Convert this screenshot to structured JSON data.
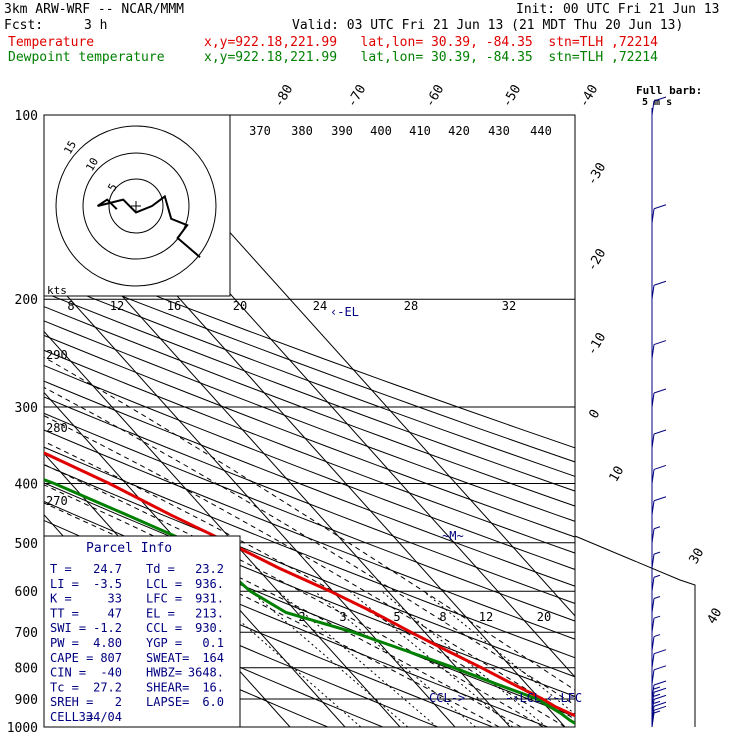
{
  "header": {
    "model": "3km ARW-WRF -- NCAR/MMM",
    "init": "Init: 00 UTC Fri 21 Jun 13",
    "fcst_label": "Fcst:",
    "fcst_value": "3 h",
    "valid": "Valid: 03 UTC Fri 21 Jun 13 (21 MDT Thu 20 Jun 13)",
    "temp_label": "Temperature",
    "temp_loc": "x,y=922.18,221.99   lat,lon= 30.39, -84.35  stn=TLH ,72214",
    "dew_label": "Dewpoint temperature",
    "dew_loc": "x,y=922.18,221.99   lat,lon= 30.39, -84.35  stn=TLH ,72214"
  },
  "barb_title": "Full barb:",
  "barb_units": "5 m s",
  "hodograph": {
    "units": "kts",
    "ring_labels": [
      "5",
      "10",
      "15"
    ]
  },
  "parcel_info": {
    "title": "Parcel Info",
    "rows": [
      [
        "T  =",
        "24.7",
        "Td =",
        "23.2"
      ],
      [
        "LI =",
        "-3.5",
        "LCL =",
        "936."
      ],
      [
        "K  =",
        "33",
        "LFC =",
        "931."
      ],
      [
        "TT =",
        "47",
        "EL =",
        "213."
      ],
      [
        "SWI =",
        "-1.2",
        "CCL =",
        "930."
      ],
      [
        "PW =",
        "4.80",
        "YGP =",
        "0.1"
      ],
      [
        "CAPE =",
        "807",
        "SWEAT=",
        "164"
      ],
      [
        "CIN =",
        "-40",
        "HWBZ=",
        "3648."
      ],
      [
        "Tc =",
        "27.2",
        "SHEAR=",
        "16."
      ],
      [
        "SREH =",
        "2",
        "LAPSE=",
        "6.0"
      ],
      [
        "CELL =",
        "334/04",
        "",
        ""
      ]
    ]
  },
  "level_labels": {
    "el": "EL",
    "lfc": "LFC",
    "ccl": "CCL",
    "lcl": "LCL"
  },
  "chart_data": {
    "type": "line",
    "skew_t": true,
    "pressure_levels": [
      100,
      200,
      300,
      400,
      500,
      600,
      700,
      800,
      900,
      1000
    ],
    "isotherms": [
      -90,
      -80,
      -70,
      -60,
      -50,
      -40,
      -30,
      -20,
      -10,
      0,
      10,
      20,
      30,
      40
    ],
    "isotherm_labels": [
      "-80",
      "-70",
      "-60",
      "-50",
      "-40",
      "-30",
      "-20",
      "-10",
      "0",
      "10",
      "30",
      "40"
    ],
    "theta_labels_top": [
      "370",
      "380",
      "390",
      "400",
      "410",
      "420",
      "430",
      "440"
    ],
    "theta_labels_side": [
      "290",
      "280",
      "270"
    ],
    "mixing_ratio_labels": [
      "2",
      "3",
      "5",
      "8",
      "12",
      "20"
    ],
    "hodograph_speed_labels": [
      "8",
      "12",
      "16",
      "20",
      "24",
      "28",
      "32"
    ],
    "series": [
      {
        "name": "Temperature",
        "color": "#e00000",
        "p": [
          1000,
          990,
          975,
          950,
          925,
          900,
          850,
          800,
          750,
          700,
          650,
          600,
          550,
          500,
          450,
          400,
          350,
          300,
          250,
          200,
          170,
          150,
          130,
          115,
          100
        ],
        "t": [
          24.7,
          26.8,
          25.2,
          23.1,
          21.5,
          20.5,
          17.5,
          14.5,
          11,
          7.5,
          4,
          -0.5,
          -6,
          -11,
          -17,
          -23,
          -31,
          -40,
          -50,
          -59,
          -64,
          -66,
          -65,
          -63,
          -62
        ]
      },
      {
        "name": "Dewpoint temperature",
        "color": "#008000",
        "p": [
          1000,
          990,
          975,
          950,
          925,
          900,
          850,
          800,
          750,
          700,
          650,
          600,
          550,
          500,
          450,
          400,
          370,
          350,
          330,
          310,
          300,
          280,
          250,
          220,
          200,
          170,
          150,
          130,
          115,
          100
        ],
        "t": [
          23.2,
          22.6,
          22.0,
          21.5,
          20.5,
          19.5,
          14.5,
          9.5,
          3.5,
          -3,
          -12,
          -15,
          -16,
          -18,
          -25,
          -33,
          -40,
          -41,
          -37,
          -32,
          -30,
          -32,
          -38,
          -46,
          -54,
          -66,
          -74,
          -79,
          -80,
          -80
        ]
      }
    ],
    "hodograph_path_kts": [
      [
        -6,
        -1
      ],
      [
        -9,
        2
      ],
      [
        -12,
        0
      ],
      [
        -4,
        2
      ],
      [
        0,
        -2
      ],
      [
        5,
        0
      ],
      [
        9,
        3
      ],
      [
        11,
        -4
      ],
      [
        16,
        -6
      ],
      [
        13,
        -10
      ],
      [
        20,
        -16
      ]
    ],
    "wind_barbs": [
      {
        "p": 1000,
        "speed": 5,
        "dir": 170
      },
      {
        "p": 990,
        "speed": 8,
        "dir": 190
      },
      {
        "p": 975,
        "speed": 12,
        "dir": 200
      },
      {
        "p": 950,
        "speed": 15,
        "dir": 210
      },
      {
        "p": 925,
        "speed": 15,
        "dir": 220
      },
      {
        "p": 900,
        "speed": 15,
        "dir": 230
      },
      {
        "p": 850,
        "speed": 10,
        "dir": 240
      },
      {
        "p": 800,
        "speed": 10,
        "dir": 250
      },
      {
        "p": 750,
        "speed": 5,
        "dir": 250
      },
      {
        "p": 700,
        "speed": 5,
        "dir": 260
      },
      {
        "p": 650,
        "speed": 5,
        "dir": 250
      },
      {
        "p": 600,
        "speed": 5,
        "dir": 250
      },
      {
        "p": 550,
        "speed": 5,
        "dir": 250
      },
      {
        "p": 500,
        "speed": 5,
        "dir": 260
      },
      {
        "p": 450,
        "speed": 10,
        "dir": 260
      },
      {
        "p": 400,
        "speed": 10,
        "dir": 265
      },
      {
        "p": 350,
        "speed": 10,
        "dir": 265
      },
      {
        "p": 300,
        "speed": 10,
        "dir": 265
      },
      {
        "p": 250,
        "speed": 10,
        "dir": 265
      },
      {
        "p": 200,
        "speed": 10,
        "dir": 265
      },
      {
        "p": 150,
        "speed": 10,
        "dir": 265
      },
      {
        "p": 100,
        "speed": 10,
        "dir": 265
      }
    ]
  }
}
